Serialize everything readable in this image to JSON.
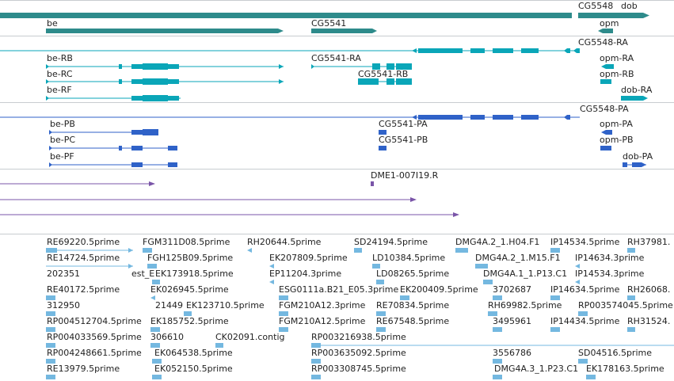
{
  "colors": {
    "gene": "#2e8b8b",
    "transcript_a": "#0aa6b8",
    "transcript_b": "#2f62c8",
    "cdna": "#7a55a8",
    "est": "#74b8e0"
  },
  "gene_track": {
    "labels": [
      "CG5548",
      "dob",
      "be",
      "CG5541",
      "opm"
    ]
  },
  "transcript_track_1": {
    "labels": [
      "CG5548-RA",
      "be-RB",
      "CG5541-RA",
      "opm-RA",
      "be-RC",
      "CG5541-RB",
      "opm-RB",
      "be-RF",
      "dob-RA"
    ]
  },
  "transcript_track_2": {
    "labels": [
      "CG5548-PA",
      "be-PB",
      "CG5541-PA",
      "opm-PA",
      "be-PC",
      "CG5541-PB",
      "opm-PB",
      "be-PF",
      "dob-PA"
    ]
  },
  "cdna_track": {
    "labels": [
      "DME1-007I19.R"
    ]
  },
  "est_track": {
    "labels": [
      "RE69220.5prime",
      "FGM311D08.5prime",
      "RH20644.5prime",
      "SD24194.5prime",
      "DMG4A.2_1.H04.F1",
      "IP14534.5prime",
      "RH37981.",
      "RE14724.5prime",
      "FGH125B09.5prime",
      "EK207809.5prime",
      "LD10384.5prime",
      "DMG4A.2_1.M15.F1",
      "IP14634.3prime",
      "202351",
      "est_E",
      "EK173918.5prime",
      "EP11204.3prime",
      "LD08265.5prime",
      "DMG4A.1_1.P13.C1",
      "IP14534.3prime",
      "RE40172.5prime",
      "EK026945.5prime",
      "ESG0111a.B21_E05.3prime",
      "EK200409.5prime",
      "3702687",
      "IP14634.5prime",
      "RH26068.",
      "312950",
      "21449",
      "EK123710.5prime",
      "FGM210A12.3prime",
      "RE70834.5prime",
      "RH69982.5prime",
      "RP003574045.5prime",
      "RP004512704.5prime",
      "EK185752.5prime",
      "FGM210A12.5prime",
      "RE67548.5prime",
      "3495961",
      "IP14434.5prime",
      "RH31524.",
      "RP004033569.5prime",
      "306610",
      "CK02091.contig",
      "RP003216938.5prime",
      "RP004248661.5prime",
      "EK064538.5prime",
      "RP003635092.5prime",
      "3556786",
      "SD04516.5prime",
      "RE13979.5prime",
      "EK052150.5prime",
      "RP003308745.5prime",
      "DMG4A.3_1.P23.C1",
      "EK178163.5prime"
    ]
  }
}
